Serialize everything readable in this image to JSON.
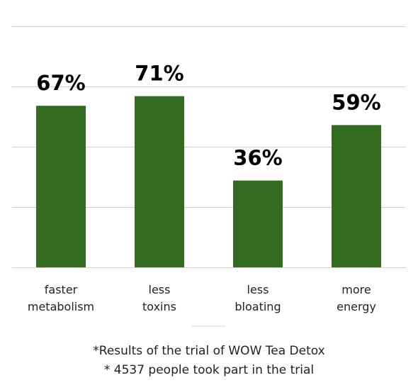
{
  "chart_data": {
    "type": "bar",
    "categories": [
      [
        "faster",
        "metabolism"
      ],
      [
        "less",
        "toxins"
      ],
      [
        "less",
        "bloating"
      ],
      [
        "more",
        "energy"
      ]
    ],
    "values": [
      67,
      71,
      36,
      59
    ],
    "value_labels": [
      "67%",
      "71%",
      "36%",
      "59%"
    ],
    "bar_color": "#336b20",
    "ylim": [
      0,
      100
    ],
    "grid": true,
    "title": "",
    "xlabel": "",
    "ylabel": ""
  },
  "footnotes": [
    "*Results of the trial of WOW Tea Detox",
    "* 4537 people took part in the trial"
  ]
}
